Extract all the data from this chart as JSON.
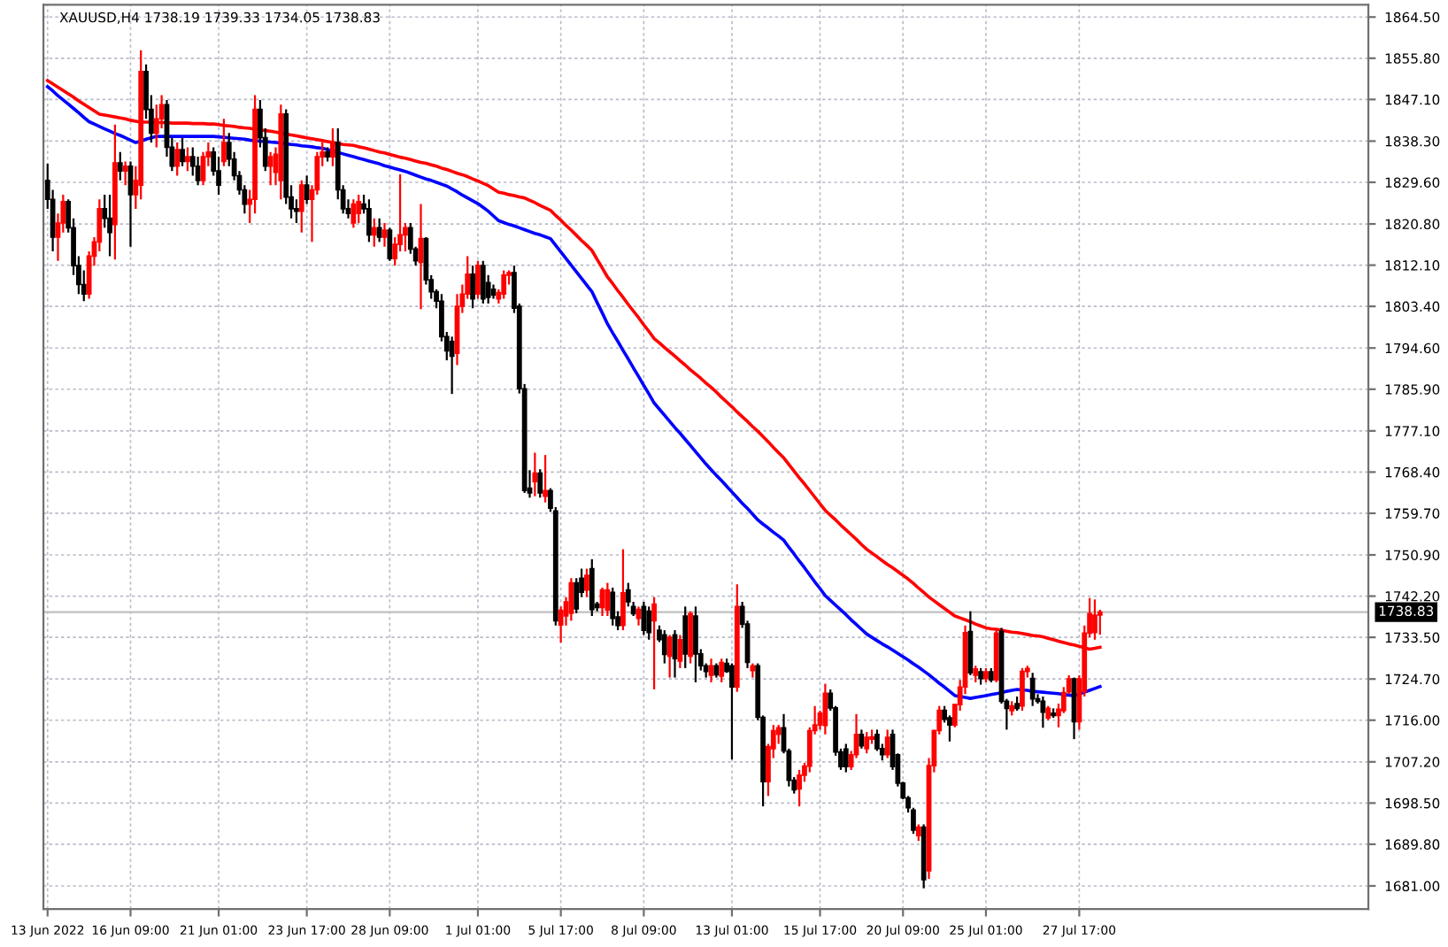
{
  "chart_data": {
    "type": "candlestick",
    "title": "XAUUSD,H4 1738.19 1739.33 1734.05 1738.83",
    "categories": [
      "13 Jun 2022",
      null,
      null,
      null,
      null,
      null,
      null,
      null,
      null,
      null,
      null,
      null,
      null,
      null,
      null,
      null,
      "16 Jun 09:00",
      null,
      null,
      null,
      null,
      null,
      null,
      null,
      null,
      null,
      null,
      null,
      null,
      null,
      null,
      null,
      null,
      "21 Jun 01:00",
      null,
      null,
      null,
      null,
      null,
      null,
      null,
      null,
      null,
      null,
      null,
      null,
      null,
      null,
      null,
      null,
      "23 Jun 17:00",
      null,
      null,
      null,
      null,
      null,
      null,
      null,
      null,
      null,
      null,
      null,
      null,
      null,
      null,
      null,
      "28 Jun 09:00",
      null,
      null,
      null,
      null,
      null,
      null,
      null,
      null,
      null,
      null,
      null,
      null,
      null,
      null,
      null,
      null,
      "1 Jul 01:00",
      null,
      null,
      null,
      null,
      null,
      null,
      null,
      null,
      null,
      null,
      null,
      null,
      null,
      null,
      null,
      "5 Jul 17:00",
      null,
      null,
      null,
      null,
      null,
      null,
      null,
      null,
      null,
      null,
      null,
      null,
      null,
      null,
      null,
      "8 Jul 09:00",
      null,
      null,
      null,
      null,
      null,
      null,
      null,
      null,
      null,
      null,
      null,
      null,
      null,
      null,
      null,
      null,
      "13 Jul 01:00",
      null,
      null,
      null,
      null,
      null,
      null,
      null,
      null,
      null,
      null,
      null,
      null,
      null,
      null,
      null,
      null,
      "15 Jul 17:00",
      null,
      null,
      null,
      null,
      null,
      null,
      null,
      null,
      null,
      null,
      null,
      null,
      null,
      null,
      null,
      "20 Jul 09:00",
      null,
      null,
      null,
      null,
      null,
      null,
      null,
      null,
      null,
      null,
      null,
      null,
      null,
      null,
      null,
      "25 Jul 01:00",
      null,
      null,
      null,
      null,
      null,
      null,
      null,
      null,
      null,
      null,
      null,
      null,
      null,
      null,
      null,
      null,
      null,
      "27 Jul 17:00",
      null,
      null,
      null,
      null
    ],
    "ohlc": [
      [
        1830,
        1833.5,
        1824,
        1826
      ],
      [
        1826,
        1828,
        1815,
        1818
      ],
      [
        1818,
        1823,
        1813,
        1821
      ],
      [
        1821,
        1827,
        1819,
        1825.5
      ],
      [
        1825.5,
        1826,
        1819,
        1820
      ],
      [
        1820,
        1822,
        1810,
        1812
      ],
      [
        1812,
        1814,
        1806,
        1808
      ],
      [
        1808,
        1811,
        1804.5,
        1806
      ],
      [
        1806,
        1815,
        1805,
        1814
      ],
      [
        1814,
        1818,
        1812,
        1817
      ],
      [
        1817,
        1826,
        1815,
        1824
      ],
      [
        1824,
        1827,
        1820,
        1822
      ],
      [
        1822,
        1827,
        1814,
        1819
      ],
      [
        1820.7,
        1841.8,
        1813.3,
        1833.7
      ],
      [
        1833.7,
        1836,
        1830,
        1832
      ],
      [
        1832,
        1834,
        1829,
        1833
      ],
      [
        1833,
        1834,
        1816,
        1827
      ],
      [
        1827,
        1833,
        1824,
        1830
      ],
      [
        1829,
        1857.5,
        1826,
        1853
      ],
      [
        1853,
        1854.5,
        1843,
        1845
      ],
      [
        1845,
        1848,
        1838,
        1840
      ],
      [
        1840,
        1846,
        1837,
        1843
      ],
      [
        1843,
        1848,
        1841,
        1846
      ],
      [
        1846,
        1847,
        1835,
        1837
      ],
      [
        1837,
        1839,
        1832,
        1833
      ],
      [
        1833,
        1838,
        1831,
        1836.5
      ],
      [
        1836.5,
        1839,
        1833,
        1834
      ],
      [
        1834,
        1837,
        1832,
        1835
      ],
      [
        1835,
        1837,
        1831,
        1833
      ],
      [
        1833,
        1835,
        1829,
        1830
      ],
      [
        1830,
        1836,
        1829,
        1835
      ],
      [
        1835,
        1838,
        1833,
        1836
      ],
      [
        1836,
        1837,
        1831,
        1832
      ],
      [
        1832,
        1835,
        1827,
        1829
      ],
      [
        1834,
        1843,
        1833,
        1838
      ],
      [
        1838,
        1840,
        1833,
        1834.5
      ],
      [
        1834.5,
        1836,
        1830,
        1831
      ],
      [
        1831,
        1832,
        1827,
        1828
      ],
      [
        1828,
        1829,
        1823,
        1825
      ],
      [
        1825,
        1828,
        1821,
        1826
      ],
      [
        1826,
        1848,
        1823,
        1845
      ],
      [
        1845,
        1847,
        1837,
        1839
      ],
      [
        1839,
        1841,
        1832,
        1833
      ],
      [
        1833,
        1836,
        1829,
        1835
      ],
      [
        1831.7,
        1837,
        1829,
        1835.5
      ],
      [
        1830,
        1846,
        1826,
        1844
      ],
      [
        1844,
        1845,
        1825,
        1826.5
      ],
      [
        1826.5,
        1829,
        1822,
        1824
      ],
      [
        1824,
        1826,
        1821,
        1823.5
      ],
      [
        1823.5,
        1830,
        1819,
        1829
      ],
      [
        1829,
        1831,
        1825,
        1826
      ],
      [
        1826,
        1829,
        1817,
        1828
      ],
      [
        1828,
        1836,
        1827,
        1835
      ],
      [
        1835,
        1838,
        1833,
        1836
      ],
      [
        1836,
        1837,
        1834,
        1835
      ],
      [
        1835,
        1841,
        1833,
        1838
      ],
      [
        1838,
        1841,
        1826,
        1828
      ],
      [
        1828,
        1829,
        1823,
        1824
      ],
      [
        1824,
        1826,
        1822,
        1823
      ],
      [
        1821,
        1826,
        1820,
        1825
      ],
      [
        1823,
        1827,
        1821,
        1825.5
      ],
      [
        1825,
        1827,
        1823,
        1824
      ],
      [
        1824,
        1826,
        1817,
        1818.5
      ],
      [
        1818.5,
        1822,
        1816,
        1820
      ],
      [
        1820,
        1822,
        1817,
        1818
      ],
      [
        1818,
        1821,
        1816,
        1819.5
      ],
      [
        1819.5,
        1820,
        1813,
        1813.5
      ],
      [
        1813.5,
        1818,
        1812,
        1816.5
      ],
      [
        1816.5,
        1831.3,
        1815,
        1818.5
      ],
      [
        1818.5,
        1821,
        1815,
        1820
      ],
      [
        1820,
        1821,
        1814.5,
        1815.5
      ],
      [
        1815.5,
        1816,
        1812,
        1813
      ],
      [
        1812.7,
        1825,
        1802.8,
        1817.7
      ],
      [
        1817.7,
        1818,
        1808,
        1809
      ],
      [
        1809,
        1810,
        1805,
        1806.5
      ],
      [
        1806.5,
        1807,
        1803,
        1804.5
      ],
      [
        1804.5,
        1806,
        1796,
        1797
      ],
      [
        1797,
        1798,
        1792,
        1794
      ],
      [
        1796,
        1797,
        1784.9,
        1792.9
      ],
      [
        1793.5,
        1806,
        1791,
        1803.4
      ],
      [
        1803.4,
        1808,
        1802,
        1806
      ],
      [
        1806,
        1814,
        1805,
        1810.2
      ],
      [
        1810.2,
        1812,
        1803,
        1805
      ],
      [
        1806,
        1813,
        1805,
        1812
      ],
      [
        1812,
        1813,
        1804,
        1805
      ],
      [
        1808.4,
        1810,
        1804,
        1805.3
      ],
      [
        1807,
        1808,
        1805,
        1805.8
      ],
      [
        1805,
        1807,
        1804,
        1806.3
      ],
      [
        1806,
        1811,
        1805,
        1810
      ],
      [
        1810,
        1811,
        1808,
        1810.5
      ],
      [
        1810.5,
        1812,
        1802,
        1803
      ],
      [
        1803.4,
        1804,
        1785,
        1786
      ],
      [
        1786,
        1787,
        1764,
        1764.5
      ],
      [
        1765,
        1768.8,
        1763,
        1764
      ],
      [
        1766.4,
        1772.5,
        1763.3,
        1768.2
      ],
      [
        1768.2,
        1769,
        1763,
        1764
      ],
      [
        1763.3,
        1772,
        1762,
        1764.5
      ],
      [
        1764.5,
        1765,
        1760,
        1760.8
      ],
      [
        1760.2,
        1761,
        1736,
        1737
      ],
      [
        1736.1,
        1740,
        1732.4,
        1739.2
      ],
      [
        1738,
        1742,
        1736,
        1741
      ],
      [
        1738.6,
        1746,
        1737,
        1745
      ],
      [
        1745,
        1746,
        1738.6,
        1739.5
      ],
      [
        1746,
        1748,
        1742,
        1743
      ],
      [
        1743.5,
        1748,
        1742,
        1746.6
      ],
      [
        1748,
        1750,
        1738,
        1739.4
      ],
      [
        1740.5,
        1741,
        1739,
        1739.8
      ],
      [
        1739.8,
        1744,
        1738,
        1743.5
      ],
      [
        1739.3,
        1745,
        1738,
        1743.5
      ],
      [
        1743,
        1744,
        1736,
        1737.5
      ],
      [
        1737.8,
        1739,
        1735,
        1736
      ],
      [
        1736,
        1752.1,
        1735,
        1742.9
      ],
      [
        1743.5,
        1745,
        1740,
        1741
      ],
      [
        1740,
        1741,
        1738,
        1738.5
      ],
      [
        1737.5,
        1740,
        1736,
        1739.4
      ],
      [
        1740,
        1741,
        1734,
        1735
      ],
      [
        1739,
        1740,
        1733,
        1734.5
      ],
      [
        1737,
        1742,
        1722.5,
        1740.5
      ],
      [
        1735,
        1736,
        1732.5,
        1733
      ],
      [
        1734,
        1735,
        1728,
        1729.9
      ],
      [
        1729.5,
        1734,
        1725,
        1733.5
      ],
      [
        1734,
        1735,
        1725,
        1729
      ],
      [
        1728.5,
        1734,
        1727,
        1733
      ],
      [
        1738,
        1740,
        1727,
        1730
      ],
      [
        1729.5,
        1739,
        1728,
        1738.5
      ],
      [
        1738,
        1740,
        1724,
        1730
      ],
      [
        1730,
        1731,
        1726.5,
        1727.5
      ],
      [
        1727.5,
        1728,
        1725,
        1726.3
      ],
      [
        1725.5,
        1729,
        1724,
        1727.5
      ],
      [
        1727.5,
        1728,
        1725,
        1725.6
      ],
      [
        1725.3,
        1729,
        1724,
        1728.2
      ],
      [
        1728,
        1729,
        1726,
        1726.3
      ],
      [
        1727.5,
        1728,
        1707.7,
        1723
      ],
      [
        1723,
        1744.7,
        1722,
        1740
      ],
      [
        1740,
        1741,
        1735.5,
        1736.3
      ],
      [
        1736.3,
        1737,
        1727,
        1728.2
      ],
      [
        1726.5,
        1728,
        1725,
        1727.5
      ],
      [
        1727.5,
        1728,
        1716,
        1716.6
      ],
      [
        1716.6,
        1717,
        1697.8,
        1703
      ],
      [
        1703,
        1711,
        1700,
        1710.4
      ],
      [
        1710,
        1715,
        1708,
        1713.8
      ],
      [
        1713,
        1715,
        1711,
        1714.4
      ],
      [
        1714.4,
        1717.3,
        1709,
        1709.5
      ],
      [
        1709.5,
        1710,
        1702,
        1703.3
      ],
      [
        1703.3,
        1704,
        1700.5,
        1701.3
      ],
      [
        1701.5,
        1705.5,
        1697.8,
        1704.4
      ],
      [
        1704.4,
        1707,
        1703,
        1706.3
      ],
      [
        1706.3,
        1714.5,
        1705,
        1713.8
      ],
      [
        1713.8,
        1719,
        1713,
        1715
      ],
      [
        1715,
        1718,
        1714,
        1717.5
      ],
      [
        1714.9,
        1723.7,
        1713,
        1721.7
      ],
      [
        1721.7,
        1722.5,
        1718,
        1718.6
      ],
      [
        1718.6,
        1719,
        1708.5,
        1709.3
      ],
      [
        1709.3,
        1710,
        1705.5,
        1706.2
      ],
      [
        1709.9,
        1711,
        1705,
        1706.2
      ],
      [
        1706.2,
        1709.5,
        1705.5,
        1708.7
      ],
      [
        1708.7,
        1717.3,
        1708,
        1713
      ],
      [
        1713,
        1714,
        1710,
        1710.6
      ],
      [
        1710,
        1713.5,
        1709,
        1712.4
      ],
      [
        1712,
        1714,
        1711,
        1712.5
      ],
      [
        1713,
        1714,
        1709.5,
        1710
      ],
      [
        1710,
        1711,
        1707.5,
        1708.7
      ],
      [
        1708.7,
        1714,
        1708,
        1712.4
      ],
      [
        1713,
        1714,
        1705.5,
        1706.2
      ],
      [
        1708.7,
        1709,
        1702,
        1702.7
      ],
      [
        1702.7,
        1703,
        1699.3,
        1699.6
      ],
      [
        1699.6,
        1700,
        1696.5,
        1697.5
      ],
      [
        1697,
        1697.5,
        1692,
        1692.8
      ],
      [
        1691.6,
        1694,
        1690.5,
        1693.4
      ],
      [
        1693.4,
        1694,
        1680.5,
        1682.3
      ],
      [
        1684.2,
        1708,
        1682.5,
        1706.4
      ],
      [
        1706.4,
        1714,
        1705,
        1713.8
      ],
      [
        1713.8,
        1719,
        1713,
        1718.1
      ],
      [
        1718.1,
        1719,
        1715.5,
        1716.2
      ],
      [
        1716.5,
        1717,
        1711.5,
        1715
      ],
      [
        1715,
        1719.5,
        1714.5,
        1719.3
      ],
      [
        1719.3,
        1724.5,
        1718,
        1723
      ],
      [
        1723,
        1736,
        1721.5,
        1734.5
      ],
      [
        1734.7,
        1739,
        1725.5,
        1726
      ],
      [
        1725.5,
        1727.5,
        1724,
        1726.8
      ],
      [
        1726.2,
        1727,
        1723.5,
        1724.8
      ],
      [
        1724.8,
        1727,
        1724,
        1726.2
      ],
      [
        1726.2,
        1727,
        1724,
        1724.5
      ],
      [
        1724.5,
        1735,
        1724,
        1734.4
      ],
      [
        1734.7,
        1735.5,
        1719.5,
        1720
      ],
      [
        1720,
        1720.5,
        1714,
        1718.5
      ],
      [
        1718,
        1720,
        1717,
        1719
      ],
      [
        1719.5,
        1721,
        1718,
        1718.5
      ],
      [
        1719,
        1727,
        1718,
        1726.3
      ],
      [
        1726.3,
        1727.5,
        1725,
        1726.9
      ],
      [
        1724.8,
        1726,
        1719,
        1720.5
      ],
      [
        1720.5,
        1721.5,
        1719.5,
        1720
      ],
      [
        1720,
        1721,
        1714.4,
        1717.7
      ],
      [
        1716.5,
        1719,
        1716,
        1718.5
      ],
      [
        1717.5,
        1718.5,
        1716.5,
        1717
      ],
      [
        1717,
        1719.5,
        1714.5,
        1718.3
      ],
      [
        1718,
        1723,
        1717.5,
        1721.8
      ],
      [
        1722,
        1725.5,
        1721.5,
        1724.7
      ],
      [
        1724.7,
        1725,
        1712,
        1715.7
      ],
      [
        1715.7,
        1725.5,
        1714,
        1724.7
      ],
      [
        1722,
        1736,
        1721,
        1734.4
      ],
      [
        1734.4,
        1741.8,
        1733.5,
        1738.5
      ],
      [
        1734.5,
        1741.5,
        1733,
        1738.2
      ],
      [
        1738.19,
        1739.33,
        1734.05,
        1738.83
      ]
    ],
    "colors": [
      "#000000",
      "#000000",
      "#ff0000",
      "#ff0000",
      "#000000",
      "#000000",
      "#000000",
      "#000000",
      "#ff0000",
      "#ff0000",
      "#ff0000",
      "#000000",
      "#000000",
      "#ff0000",
      "#000000",
      "#ff0000",
      "#000000",
      "#ff0000",
      "#ff0000",
      "#000000",
      "#000000",
      "#ff0000",
      "#ff0000",
      "#000000",
      "#000000",
      "#ff0000",
      "#000000",
      "#ff0000",
      "#000000",
      "#000000",
      "#ff0000",
      "#ff0000",
      "#000000",
      "#000000",
      "#ff0000",
      "#000000",
      "#000000",
      "#000000",
      "#000000",
      "#ff0000",
      "#ff0000",
      "#000000",
      "#000000",
      "#ff0000",
      "#ff0000",
      "#ff0000",
      "#000000",
      "#000000",
      "#000000",
      "#ff0000",
      "#000000",
      "#ff0000",
      "#ff0000",
      "#ff0000",
      "#000000",
      "#ff0000",
      "#000000",
      "#000000",
      "#000000",
      "#ff0000",
      "#ff0000",
      "#000000",
      "#000000",
      "#ff0000",
      "#000000",
      "#ff0000",
      "#000000",
      "#ff0000",
      "#ff0000",
      "#ff0000",
      "#000000",
      "#000000",
      "#ff0000",
      "#000000",
      "#000000",
      "#000000",
      "#000000",
      "#000000",
      "#000000",
      "#ff0000",
      "#ff0000",
      "#ff0000",
      "#000000",
      "#ff0000",
      "#000000",
      "#000000",
      "#000000",
      "#ff0000",
      "#ff0000",
      "#ff0000",
      "#000000",
      "#000000",
      "#000000",
      "#000000",
      "#ff0000",
      "#000000",
      "#ff0000",
      "#000000",
      "#000000",
      "#ff0000",
      "#ff0000",
      "#ff0000",
      "#000000",
      "#000000",
      "#ff0000",
      "#000000",
      "#000000",
      "#ff0000",
      "#ff0000",
      "#000000",
      "#000000",
      "#ff0000",
      "#000000",
      "#000000",
      "#ff0000",
      "#000000",
      "#000000",
      "#ff0000",
      "#000000",
      "#000000",
      "#ff0000",
      "#000000",
      "#ff0000",
      "#000000",
      "#ff0000",
      "#000000",
      "#000000",
      "#000000",
      "#ff0000",
      "#000000",
      "#ff0000",
      "#000000",
      "#000000",
      "#ff0000",
      "#000000",
      "#000000",
      "#ff0000",
      "#000000",
      "#000000",
      "#ff0000",
      "#ff0000",
      "#ff0000",
      "#000000",
      "#000000",
      "#000000",
      "#ff0000",
      "#ff0000",
      "#ff0000",
      "#ff0000",
      "#ff0000",
      "#ff0000",
      "#000000",
      "#000000",
      "#000000",
      "#000000",
      "#ff0000",
      "#ff0000",
      "#000000",
      "#ff0000",
      "#ff0000",
      "#000000",
      "#000000",
      "#ff0000",
      "#000000",
      "#000000",
      "#000000",
      "#000000",
      "#000000",
      "#ff0000",
      "#000000",
      "#ff0000",
      "#ff0000",
      "#ff0000",
      "#000000",
      "#000000",
      "#ff0000",
      "#ff0000",
      "#ff0000",
      "#000000",
      "#ff0000",
      "#000000",
      "#ff0000",
      "#000000",
      "#ff0000",
      "#000000",
      "#000000",
      "#ff0000",
      "#000000",
      "#ff0000",
      "#ff0000",
      "#000000",
      "#000000",
      "#000000",
      "#ff0000",
      "#000000",
      "#ff0000",
      "#ff0000",
      "#ff0000",
      "#000000",
      "#ff0000",
      "#ff0000",
      "#ff0000",
      "#ff0000",
      "#ff0000"
    ],
    "series": [
      {
        "type": "line",
        "color": "#ff0000",
        "values": [
          1851.1,
          1850.4,
          1849.7,
          1849.0,
          1848.3,
          1847.6,
          1846.8,
          1846.1,
          1845.4,
          1844.7,
          1844.0,
          1843.8,
          1843.6,
          1843.4,
          1843.2,
          1843.0,
          1842.7,
          1842.5,
          1842.3,
          1842.3,
          1842.3,
          1842.2,
          1842.2,
          1842.2,
          1842.1,
          1842.1,
          1842.1,
          1842.1,
          1842.0,
          1842.0,
          1842.0,
          1841.9,
          1841.9,
          1841.8,
          1841.6,
          1841.5,
          1841.4,
          1841.2,
          1841.1,
          1841.0,
          1840.8,
          1840.7,
          1840.5,
          1840.4,
          1840.2,
          1840.0,
          1839.8,
          1839.6,
          1839.4,
          1839.2,
          1839.0,
          1838.8,
          1838.6,
          1838.4,
          1838.2,
          1838.0,
          1837.8,
          1837.6,
          1837.5,
          1837.4,
          1837.1,
          1836.9,
          1836.6,
          1836.3,
          1836.0,
          1835.8,
          1835.5,
          1835.2,
          1834.9,
          1834.7,
          1834.4,
          1834.1,
          1833.8,
          1833.6,
          1833.3,
          1833.0,
          1832.6,
          1832.3,
          1831.9,
          1831.5,
          1831.2,
          1830.8,
          1830.3,
          1829.9,
          1829.4,
          1828.9,
          1828.2,
          1827.5,
          1827.3,
          1827.0,
          1826.8,
          1826.5,
          1826.3,
          1825.8,
          1825.3,
          1824.7,
          1824.2,
          1823.7,
          1822.6,
          1821.6,
          1820.5,
          1819.5,
          1818.4,
          1817.3,
          1816.3,
          1815.2,
          1813.3,
          1811.5,
          1809.6,
          1808.2,
          1806.7,
          1805.3,
          1803.8,
          1802.4,
          1801.0,
          1799.5,
          1798.1,
          1796.6,
          1795.7,
          1794.7,
          1793.8,
          1792.9,
          1791.9,
          1791.0,
          1790.0,
          1789.1,
          1788.2,
          1787.2,
          1786.3,
          1785.3,
          1784.2,
          1783.2,
          1782.2,
          1781.1,
          1780.1,
          1779.1,
          1778.0,
          1777.0,
          1775.9,
          1774.8,
          1773.6,
          1772.5,
          1771.4,
          1770.0,
          1768.6,
          1767.2,
          1765.9,
          1764.5,
          1763.1,
          1761.7,
          1760.3,
          1759.3,
          1758.3,
          1757.2,
          1756.2,
          1755.2,
          1754.2,
          1753.1,
          1752.1,
          1751.3,
          1750.5,
          1749.7,
          1748.9,
          1748.2,
          1747.4,
          1746.6,
          1745.8,
          1744.9,
          1743.9,
          1743.0,
          1742.0,
          1741.2,
          1740.4,
          1739.6,
          1738.8,
          1738.0,
          1737.6,
          1737.2,
          1736.8,
          1736.3,
          1735.9,
          1735.5,
          1735.3,
          1735.2,
          1735.0,
          1734.8,
          1734.6,
          1734.5,
          1734.3,
          1734.1,
          1733.9,
          1733.8,
          1733.6,
          1733.3,
          1733.0,
          1732.7,
          1732.4,
          1732.1,
          1731.9,
          1731.6,
          1731.3,
          1731.0,
          1731.2,
          1731.4
        ]
      },
      {
        "type": "line",
        "color": "#0000ff",
        "values": [
          1849.8,
          1848.9,
          1847.9,
          1847.0,
          1846.1,
          1845.2,
          1844.3,
          1843.3,
          1842.4,
          1841.9,
          1841.4,
          1840.9,
          1840.4,
          1839.9,
          1839.5,
          1839.0,
          1838.5,
          1838.0,
          1838.3,
          1838.7,
          1839.0,
          1839.3,
          1839.3,
          1839.3,
          1839.3,
          1839.3,
          1839.3,
          1839.3,
          1839.3,
          1839.3,
          1839.3,
          1839.3,
          1839.3,
          1839.2,
          1839.1,
          1839.0,
          1838.9,
          1838.8,
          1838.7,
          1838.5,
          1838.4,
          1838.3,
          1838.2,
          1838.1,
          1838.0,
          1837.9,
          1837.7,
          1837.6,
          1837.5,
          1837.3,
          1837.2,
          1837.1,
          1836.9,
          1836.8,
          1836.5,
          1836.2,
          1835.9,
          1835.6,
          1835.3,
          1835.0,
          1834.7,
          1834.4,
          1834.1,
          1833.8,
          1833.5,
          1833.1,
          1832.8,
          1832.5,
          1832.2,
          1831.9,
          1831.5,
          1831.1,
          1830.7,
          1830.3,
          1830.0,
          1829.6,
          1829.2,
          1828.8,
          1828.2,
          1827.6,
          1826.9,
          1826.3,
          1825.7,
          1825.1,
          1824.3,
          1823.5,
          1822.5,
          1821.5,
          1821.1,
          1820.7,
          1820.4,
          1820.0,
          1819.6,
          1819.2,
          1818.8,
          1818.5,
          1818.1,
          1817.7,
          1816.3,
          1814.9,
          1813.5,
          1812.1,
          1810.7,
          1809.3,
          1807.9,
          1806.5,
          1804.2,
          1802.0,
          1799.7,
          1797.8,
          1796.0,
          1794.1,
          1792.3,
          1790.4,
          1788.6,
          1786.7,
          1784.9,
          1783.0,
          1781.7,
          1780.4,
          1779.1,
          1777.8,
          1776.6,
          1775.3,
          1774.0,
          1772.7,
          1771.4,
          1770.1,
          1768.9,
          1767.7,
          1766.6,
          1765.4,
          1764.2,
          1763.0,
          1761.8,
          1760.7,
          1759.5,
          1758.3,
          1757.4,
          1756.6,
          1755.7,
          1754.9,
          1754.0,
          1752.5,
          1751.1,
          1749.6,
          1748.2,
          1746.7,
          1745.2,
          1743.8,
          1742.3,
          1741.3,
          1740.3,
          1739.3,
          1738.3,
          1737.2,
          1736.2,
          1735.2,
          1734.2,
          1733.5,
          1732.8,
          1732.1,
          1731.5,
          1730.8,
          1730.1,
          1729.4,
          1728.7,
          1727.9,
          1727.2,
          1726.4,
          1725.6,
          1724.7,
          1723.8,
          1723.0,
          1722.1,
          1721.2,
          1721.0,
          1720.8,
          1720.6,
          1720.8,
          1721.0,
          1721.2,
          1721.4,
          1721.6,
          1721.8,
          1722.1,
          1722.3,
          1722.5,
          1722.4,
          1722.3,
          1722.1,
          1722.0,
          1721.9,
          1721.8,
          1721.7,
          1721.6,
          1721.4,
          1721.3,
          1721.2,
          1721.5,
          1721.9,
          1722.3,
          1722.7,
          1723.1
        ]
      }
    ],
    "ylim": [
      1676.1,
      1867.1
    ],
    "yticks": [
      {
        "value": 1681,
        "label": "1681.00"
      },
      {
        "value": 1689.8,
        "label": "1689.80"
      },
      {
        "value": 1698.5,
        "label": "1698.50"
      },
      {
        "value": 1707.2,
        "label": "1707.20"
      },
      {
        "value": 1716,
        "label": "1716.00"
      },
      {
        "value": 1724.7,
        "label": "1724.70"
      },
      {
        "value": 1733.5,
        "label": "1733.50"
      },
      {
        "value": 1742.2,
        "label": "1742.20"
      },
      {
        "value": 1750.9,
        "label": "1750.90"
      },
      {
        "value": 1759.7,
        "label": "1759.70"
      },
      {
        "value": 1768.4,
        "label": "1768.40"
      },
      {
        "value": 1777.1,
        "label": "1777.10"
      },
      {
        "value": 1785.9,
        "label": "1785.90"
      },
      {
        "value": 1794.6,
        "label": "1794.60"
      },
      {
        "value": 1803.4,
        "label": "1803.40"
      },
      {
        "value": 1812.1,
        "label": "1812.10"
      },
      {
        "value": 1820.8,
        "label": "1820.80"
      },
      {
        "value": 1829.6,
        "label": "1829.60"
      },
      {
        "value": 1838.3,
        "label": "1838.30"
      },
      {
        "value": 1847.1,
        "label": "1847.10"
      },
      {
        "value": 1855.8,
        "label": "1855.80"
      },
      {
        "value": 1864.5,
        "label": "1864.50"
      }
    ],
    "ref_lines": [
      {
        "axis": "y",
        "value": 1738.83,
        "label": "1738.83",
        "color": "#c0c0c0"
      }
    ],
    "grid": true
  }
}
